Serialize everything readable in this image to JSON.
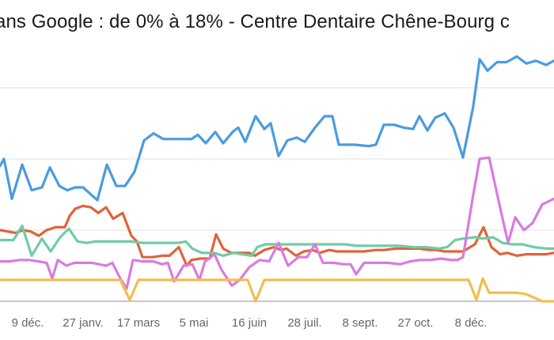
{
  "chart_data": {
    "type": "line",
    "title": "…ans Google : de 0% à 18% - Centre Dentaire Chêne-Bourg …",
    "xlabel": "",
    "ylabel": "",
    "ylim": [
      0,
      20
    ],
    "yticks": [
      0,
      5,
      10,
      15,
      20
    ],
    "grid": true,
    "legend": "none",
    "x_unit": "week index",
    "xlim": [
      0,
      70
    ],
    "xticks": [
      {
        "x": 3.5,
        "label": "9 déc."
      },
      {
        "x": 10.5,
        "label": "27 janv."
      },
      {
        "x": 17.5,
        "label": "17 mars"
      },
      {
        "x": 24.5,
        "label": "5 mai"
      },
      {
        "x": 31.5,
        "label": "16 juin"
      },
      {
        "x": 38.5,
        "label": "28 juil."
      },
      {
        "x": 45.5,
        "label": "8 sept."
      },
      {
        "x": 52.5,
        "label": "27 oct."
      },
      {
        "x": 59.5,
        "label": "8 déc."
      }
    ],
    "series": [
      {
        "name": "series-blue",
        "color": "#4a9be0",
        "points": [
          [
            0,
            9.5
          ],
          [
            0.5,
            10
          ],
          [
            1.5,
            7.2
          ],
          [
            2.8,
            9.6
          ],
          [
            4,
            7.8
          ],
          [
            5.3,
            8
          ],
          [
            6.3,
            9.4
          ],
          [
            7.5,
            8.1
          ],
          [
            8.5,
            7.8
          ],
          [
            9.5,
            8
          ],
          [
            10.5,
            8
          ],
          [
            12.3,
            7.1
          ],
          [
            13.5,
            9.6
          ],
          [
            14.7,
            8.1
          ],
          [
            15.8,
            8.1
          ],
          [
            17,
            9.1
          ],
          [
            18.2,
            11.3
          ],
          [
            19.4,
            11.8
          ],
          [
            20.6,
            11.4
          ],
          [
            22,
            11.4
          ],
          [
            23.5,
            11.4
          ],
          [
            24.2,
            11.4
          ],
          [
            25,
            11.7
          ],
          [
            26,
            11.1
          ],
          [
            27.2,
            11.9
          ],
          [
            28.2,
            11.1
          ],
          [
            29.4,
            11.9
          ],
          [
            30.1,
            12.2
          ],
          [
            31,
            11.2
          ],
          [
            32.3,
            13
          ],
          [
            33.4,
            12.1
          ],
          [
            34.2,
            12.5
          ],
          [
            35.2,
            10.2
          ],
          [
            36.3,
            11.3
          ],
          [
            37.5,
            11.5
          ],
          [
            38.5,
            11.2
          ],
          [
            39.8,
            12.2
          ],
          [
            41,
            13
          ],
          [
            42,
            13
          ],
          [
            42.8,
            11
          ],
          [
            44.8,
            11
          ],
          [
            46.6,
            10.9
          ],
          [
            47.5,
            11
          ],
          [
            48.5,
            12.4
          ],
          [
            49.8,
            12.4
          ],
          [
            51,
            12.2
          ],
          [
            52.2,
            12.1
          ],
          [
            53,
            13
          ],
          [
            54,
            12
          ],
          [
            55,
            12.9
          ],
          [
            56.2,
            13.2
          ],
          [
            57.3,
            12.2
          ],
          [
            58.5,
            10.1
          ],
          [
            59.8,
            13.7
          ],
          [
            60.6,
            17
          ],
          [
            61.6,
            16.2
          ],
          [
            62.8,
            16.8
          ],
          [
            64,
            16.8
          ],
          [
            65.3,
            17.2
          ],
          [
            66.5,
            16.7
          ],
          [
            67.7,
            16.9
          ],
          [
            69,
            16.6
          ],
          [
            70,
            16.9
          ]
        ]
      },
      {
        "name": "series-orange",
        "color": "#e0633a",
        "points": [
          [
            0,
            5
          ],
          [
            1,
            4.9
          ],
          [
            2,
            4.8
          ],
          [
            2.9,
            5
          ],
          [
            3.9,
            4.9
          ],
          [
            4.9,
            4.6
          ],
          [
            5.9,
            5
          ],
          [
            7,
            5.2
          ],
          [
            8.2,
            5.2
          ],
          [
            8.8,
            6
          ],
          [
            9.5,
            6.5
          ],
          [
            10.5,
            6.7
          ],
          [
            11.5,
            6.6
          ],
          [
            12.4,
            6.2
          ],
          [
            13.4,
            6.6
          ],
          [
            14.3,
            5.8
          ],
          [
            15.5,
            6.2
          ],
          [
            16.6,
            4.6
          ],
          [
            17.3,
            4.2
          ],
          [
            18,
            3.1
          ],
          [
            19.3,
            3.1
          ],
          [
            20.5,
            3.2
          ],
          [
            21.4,
            3.2
          ],
          [
            22.6,
            3.8
          ],
          [
            23.6,
            2.5
          ],
          [
            24.2,
            2.9
          ],
          [
            25.3,
            3
          ],
          [
            26.5,
            3
          ],
          [
            27.3,
            4.7
          ],
          [
            28.2,
            3.7
          ],
          [
            29.2,
            3.4
          ],
          [
            30.1,
            3.4
          ],
          [
            31.5,
            3.4
          ],
          [
            32.2,
            3.2
          ],
          [
            33.4,
            3.6
          ],
          [
            34.6,
            3.8
          ],
          [
            35.5,
            3.6
          ],
          [
            36.2,
            3.7
          ],
          [
            37.4,
            3.2
          ],
          [
            38.4,
            3.5
          ],
          [
            39.5,
            3.6
          ],
          [
            40.4,
            3.4
          ],
          [
            41.6,
            3.6
          ],
          [
            42.6,
            3.5
          ],
          [
            43.6,
            3.5
          ],
          [
            44.7,
            3.5
          ],
          [
            46,
            3.5
          ],
          [
            47.5,
            3.6
          ],
          [
            48.5,
            3.6
          ],
          [
            50,
            3.7
          ],
          [
            51.5,
            3.7
          ],
          [
            53,
            3.7
          ],
          [
            54.2,
            3.6
          ],
          [
            55.2,
            3.6
          ],
          [
            56.2,
            3.5
          ],
          [
            57.4,
            3.5
          ],
          [
            58.5,
            3.5
          ],
          [
            60,
            4
          ],
          [
            61.1,
            5.2
          ],
          [
            62.1,
            3.8
          ],
          [
            63.2,
            3.3
          ],
          [
            64.1,
            3.4
          ],
          [
            65.3,
            3.2
          ],
          [
            66.5,
            3.3
          ],
          [
            67.6,
            3.3
          ],
          [
            69,
            3.3
          ],
          [
            70,
            3.4
          ]
        ]
      },
      {
        "name": "series-green",
        "color": "#6fcca4",
        "points": [
          [
            0,
            4.3
          ],
          [
            1,
            4.3
          ],
          [
            1.7,
            4.3
          ],
          [
            2.8,
            5.3
          ],
          [
            4,
            3.2
          ],
          [
            5.3,
            4.4
          ],
          [
            6.4,
            3.5
          ],
          [
            7.6,
            4.5
          ],
          [
            8.7,
            5.1
          ],
          [
            9.8,
            4.2
          ],
          [
            11,
            4.1
          ],
          [
            12,
            4.2
          ],
          [
            13,
            4.2
          ],
          [
            14.3,
            4.2
          ],
          [
            15.5,
            4.2
          ],
          [
            16.6,
            4.2
          ],
          [
            18,
            4.1
          ],
          [
            19.5,
            4.1
          ],
          [
            21,
            4.1
          ],
          [
            22.5,
            4.1
          ],
          [
            23.5,
            4.2
          ],
          [
            24.3,
            3.7
          ],
          [
            25.5,
            3.4
          ],
          [
            27,
            3.4
          ],
          [
            28.2,
            3.2
          ],
          [
            29.5,
            3.4
          ],
          [
            30.5,
            3.3
          ],
          [
            31.8,
            3.2
          ],
          [
            32.5,
            3.8
          ],
          [
            33.5,
            4
          ],
          [
            34.8,
            4
          ],
          [
            36.2,
            4
          ],
          [
            37.7,
            4
          ],
          [
            39,
            4
          ],
          [
            40.6,
            4
          ],
          [
            42,
            4
          ],
          [
            43.6,
            4
          ],
          [
            45,
            3.9
          ],
          [
            46.5,
            3.9
          ],
          [
            47.8,
            3.9
          ],
          [
            49,
            3.9
          ],
          [
            50.5,
            3.9
          ],
          [
            52.3,
            3.8
          ],
          [
            53.8,
            3.8
          ],
          [
            55.4,
            3.7
          ],
          [
            56.5,
            3.8
          ],
          [
            57.5,
            4.3
          ],
          [
            58.5,
            4.4
          ],
          [
            60,
            4.5
          ],
          [
            61,
            4.4
          ],
          [
            62.3,
            4.5
          ],
          [
            63.5,
            4.1
          ],
          [
            64.8,
            4
          ],
          [
            66,
            4
          ],
          [
            67.5,
            3.8
          ],
          [
            69,
            3.7
          ],
          [
            70,
            3.7
          ]
        ]
      },
      {
        "name": "series-pink",
        "color": "#d97be0",
        "points": [
          [
            0,
            2.8
          ],
          [
            1.2,
            2.8
          ],
          [
            2.5,
            2.9
          ],
          [
            3.7,
            2.9
          ],
          [
            4.8,
            2.8
          ],
          [
            5.9,
            2.7
          ],
          [
            6.6,
            1.6
          ],
          [
            7.3,
            2.9
          ],
          [
            8.4,
            2.5
          ],
          [
            9.4,
            2.7
          ],
          [
            10.4,
            2.7
          ],
          [
            11.6,
            2.7
          ],
          [
            12.5,
            2.6
          ],
          [
            13.4,
            2.5
          ],
          [
            14.2,
            2.7
          ],
          [
            15.2,
            1.6
          ],
          [
            16,
            0.9
          ],
          [
            16.8,
            2.9
          ],
          [
            18,
            2.8
          ],
          [
            19.4,
            2.8
          ],
          [
            20.5,
            2.6
          ],
          [
            21.2,
            2.7
          ],
          [
            22,
            1.4
          ],
          [
            23.2,
            2.5
          ],
          [
            24.3,
            2.6
          ],
          [
            25.2,
            1.5
          ],
          [
            25.9,
            2.8
          ],
          [
            27.1,
            3.3
          ],
          [
            28,
            2.2
          ],
          [
            29.3,
            1.1
          ],
          [
            30.3,
            1.5
          ],
          [
            31.5,
            2.4
          ],
          [
            32.8,
            2.9
          ],
          [
            34,
            2.8
          ],
          [
            35.2,
            4.1
          ],
          [
            36.4,
            2.5
          ],
          [
            37.7,
            3.1
          ],
          [
            38.8,
            3.1
          ],
          [
            39.8,
            4
          ],
          [
            40.8,
            2.7
          ],
          [
            42.2,
            2.7
          ],
          [
            43.4,
            2.6
          ],
          [
            44.3,
            2.6
          ],
          [
            45,
            1.9
          ],
          [
            46,
            2.7
          ],
          [
            47.6,
            2.7
          ],
          [
            49,
            2.7
          ],
          [
            50.6,
            2.6
          ],
          [
            51.8,
            2.8
          ],
          [
            53.1,
            2.9
          ],
          [
            54.4,
            2.9
          ],
          [
            55.7,
            3
          ],
          [
            57,
            2.9
          ],
          [
            57.8,
            2.9
          ],
          [
            58.5,
            3.1
          ],
          [
            59.8,
            7.5
          ],
          [
            60.6,
            10
          ],
          [
            61.8,
            10.1
          ],
          [
            63.1,
            6.8
          ],
          [
            64.2,
            4.1
          ],
          [
            65.1,
            5.9
          ],
          [
            66.2,
            5
          ],
          [
            67.3,
            5.5
          ],
          [
            68.5,
            6.8
          ],
          [
            70,
            7.2
          ]
        ]
      },
      {
        "name": "series-yellow",
        "color": "#f2be4e",
        "points": [
          [
            0,
            1.5
          ],
          [
            2.5,
            1.5
          ],
          [
            5,
            1.5
          ],
          [
            7.5,
            1.5
          ],
          [
            10,
            1.5
          ],
          [
            12.5,
            1.5
          ],
          [
            15.2,
            1.5
          ],
          [
            16.4,
            0.1
          ],
          [
            17.5,
            1.5
          ],
          [
            20,
            1.5
          ],
          [
            22.5,
            1.5
          ],
          [
            25,
            1.5
          ],
          [
            27.5,
            1.5
          ],
          [
            30,
            1.5
          ],
          [
            31.3,
            1.5
          ],
          [
            32.3,
            0
          ],
          [
            33.4,
            1.5
          ],
          [
            36,
            1.5
          ],
          [
            40,
            1.5
          ],
          [
            44,
            1.5
          ],
          [
            48,
            1.5
          ],
          [
            52,
            1.5
          ],
          [
            56,
            1.5
          ],
          [
            59.2,
            1.5
          ],
          [
            60.2,
            0.1
          ],
          [
            61,
            1.6
          ],
          [
            61.8,
            0.6
          ],
          [
            63,
            0.6
          ],
          [
            64.3,
            0.6
          ],
          [
            65.3,
            0.6
          ],
          [
            66.5,
            0.5
          ],
          [
            68.5,
            0
          ],
          [
            70,
            0
          ]
        ]
      }
    ]
  },
  "title": "ans Google : de 0% à 18% - Centre Dentaire Chêne-Bourg c"
}
